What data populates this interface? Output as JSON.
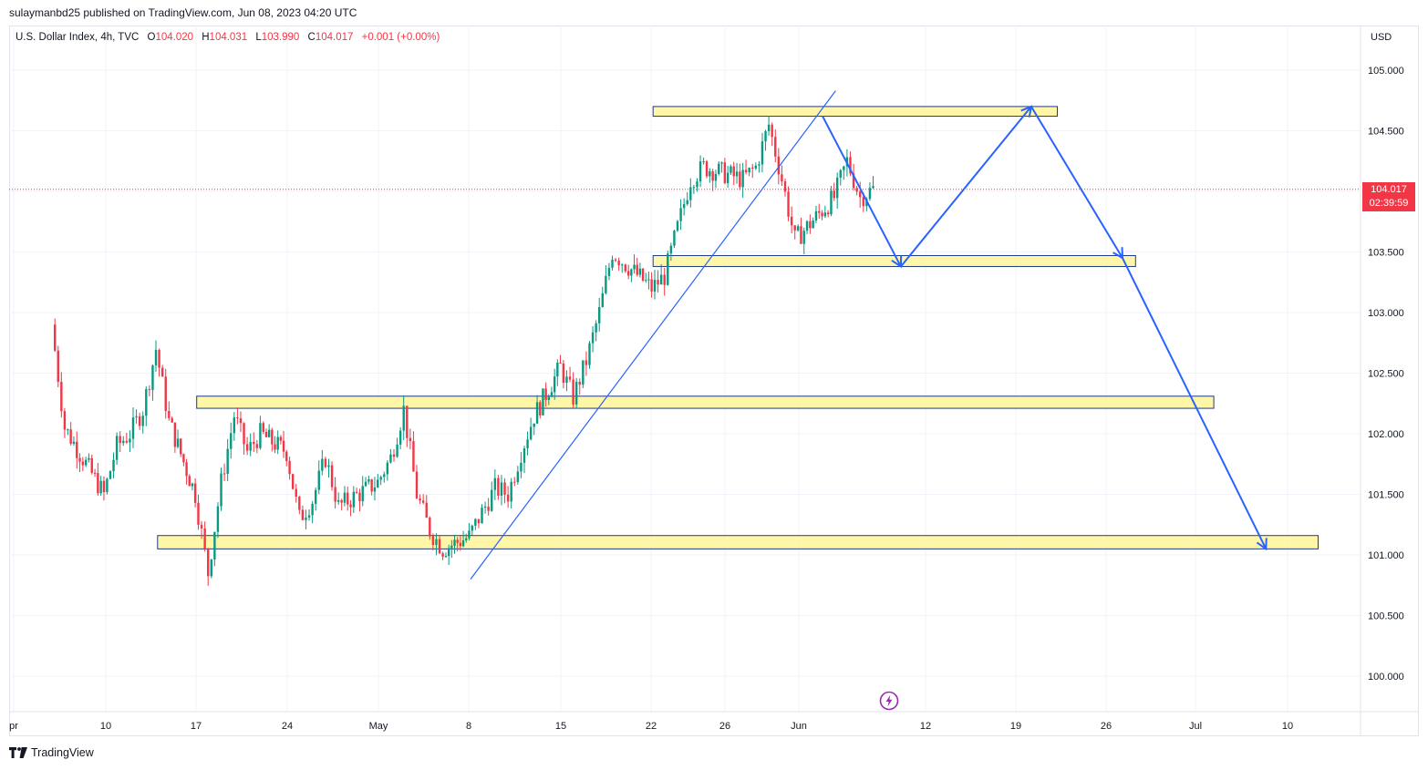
{
  "header": {
    "publisher_line": "sulaymanbd25 published on TradingView.com, Jun 08, 2023 04:20 UTC"
  },
  "legend": {
    "symbol": "U.S. Dollar Index, 4h, TVC",
    "open_label": "O",
    "open_value": "104.020",
    "high_label": "H",
    "high_value": "104.031",
    "low_label": "L",
    "low_value": "103.990",
    "close_label": "C",
    "close_value": "104.017",
    "change": "+0.001 (+0.00%)"
  },
  "price_axis": {
    "currency": "USD"
  },
  "last_price": {
    "price": "104.017",
    "countdown": "02:39:59"
  },
  "footer": {
    "brand": "TradingView"
  },
  "icons": {
    "replay": "lightning-icon",
    "brand": "tradingview-logo-icon"
  },
  "colors": {
    "up_candle": "#089981",
    "down_candle": "#f23645",
    "zone_fill": "#fff59d",
    "zone_border": "#1e3a8a",
    "drawing_line": "#2962ff",
    "last_price_line": "#f23645",
    "grid": "#f0f3fa"
  },
  "chart_data": {
    "type": "candlestick",
    "instrument": "U.S. Dollar Index",
    "timeframe": "4h",
    "y_ticks": [
      "105.000",
      "104.500",
      "104.000",
      "103.500",
      "103.000",
      "102.500",
      "102.000",
      "101.500",
      "101.000",
      "100.500",
      "100.000"
    ],
    "ylim": [
      99.75,
      105.35
    ],
    "x_ticks": [
      "pr",
      "10",
      "17",
      "24",
      "May",
      "8",
      "15",
      "22",
      "26",
      "Jun",
      "12",
      "19",
      "26",
      "Jul",
      "10"
    ],
    "last_price": 104.017,
    "closing_path": [
      [
        "Apr 06",
        102.9
      ],
      [
        "Apr 07",
        102.05
      ],
      [
        "Apr 10",
        101.5
      ],
      [
        "Apr 11",
        101.9
      ],
      [
        "Apr 12",
        102.0
      ],
      [
        "Apr 13",
        102.2
      ],
      [
        "Apr 14",
        102.7
      ],
      [
        "Apr 15",
        102.1
      ],
      [
        "Apr 17",
        101.5
      ],
      [
        "Apr 18",
        100.85
      ],
      [
        "Apr 19",
        101.6
      ],
      [
        "Apr 20",
        102.15
      ],
      [
        "Apr 21",
        101.85
      ],
      [
        "Apr 22",
        102.0
      ],
      [
        "Apr 24",
        101.85
      ],
      [
        "Apr 25",
        101.3
      ],
      [
        "Apr 26",
        101.45
      ],
      [
        "Apr 27",
        101.8
      ],
      [
        "Apr 28",
        101.4
      ],
      [
        "May 01",
        101.6
      ],
      [
        "May 02",
        101.8
      ],
      [
        "May 03",
        102.2
      ],
      [
        "May 04",
        101.5
      ],
      [
        "May 05",
        101.2
      ],
      [
        "May 06",
        101.05
      ],
      [
        "May 08",
        101.15
      ],
      [
        "May 09",
        101.35
      ],
      [
        "May 10",
        101.55
      ],
      [
        "May 11",
        101.5
      ],
      [
        "May 12",
        101.85
      ],
      [
        "May 13",
        102.15
      ],
      [
        "May 15",
        102.55
      ],
      [
        "May 16",
        102.3
      ],
      [
        "May 17",
        102.6
      ],
      [
        "May 18",
        103.0
      ],
      [
        "May 19",
        103.5
      ],
      [
        "May 20",
        103.4
      ],
      [
        "May 22",
        103.2
      ],
      [
        "May 23",
        103.3
      ],
      [
        "May 24",
        103.7
      ],
      [
        "May 25",
        104.1
      ],
      [
        "May 26",
        104.2
      ],
      [
        "May 29",
        104.1
      ],
      [
        "May 30",
        104.2
      ],
      [
        "May 31",
        104.55
      ],
      [
        "Jun 01",
        104.1
      ],
      [
        "Jun 02",
        103.6
      ],
      [
        "Jun 05",
        103.95
      ],
      [
        "Jun 06",
        104.25
      ],
      [
        "Jun 07",
        103.95
      ],
      [
        "Jun 08",
        104.017
      ]
    ],
    "zones": [
      {
        "from": "May 22",
        "to": "Jun 22",
        "low": 104.62,
        "high": 104.7
      },
      {
        "from": "May 22",
        "to": "Jun 28",
        "low": 103.38,
        "high": 103.47
      },
      {
        "from": "Apr 17",
        "to": "Jul 04",
        "low": 102.21,
        "high": 102.31
      },
      {
        "from": "Apr 14",
        "to": "Jul 12",
        "low": 101.05,
        "high": 101.16
      }
    ],
    "trendline": [
      [
        "May 08",
        100.8
      ],
      [
        "Jun 05",
        104.83
      ]
    ],
    "projected_path": [
      [
        "Jun 04",
        104.62
      ],
      [
        "Jun 10",
        103.38
      ],
      [
        "Jun 20",
        104.7
      ],
      [
        "Jun 27",
        103.45
      ],
      [
        "Jul 08",
        101.05
      ]
    ]
  }
}
